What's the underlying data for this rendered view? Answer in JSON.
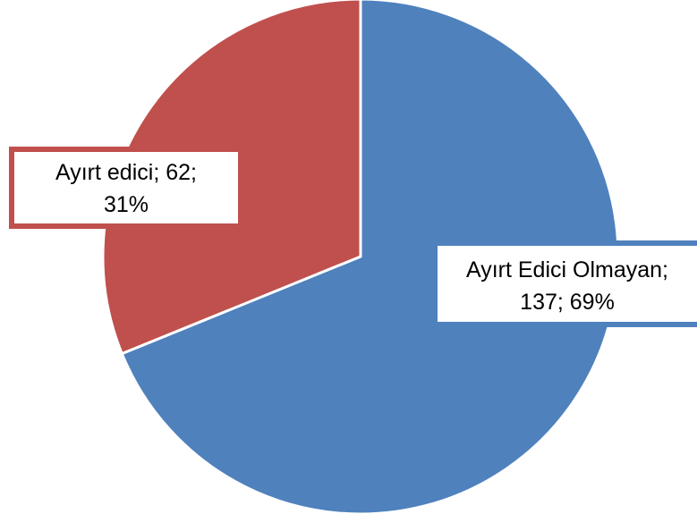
{
  "chart_data": {
    "type": "pie",
    "categories": [
      "Ayırt Edici Olmayan",
      "Ayırt edici"
    ],
    "values": [
      137,
      62
    ],
    "percentages": [
      69,
      31
    ],
    "colors": [
      "#4F81BD",
      "#C0504D"
    ],
    "data_labels": [
      {
        "line1": "Ayırt Edici Olmayan;",
        "line2": "137; 69%"
      },
      {
        "line1": "Ayırt edici; 62;",
        "line2": "31%"
      }
    ],
    "start_angle": "12 o'clock",
    "direction": "clockwise",
    "legend": "none"
  }
}
